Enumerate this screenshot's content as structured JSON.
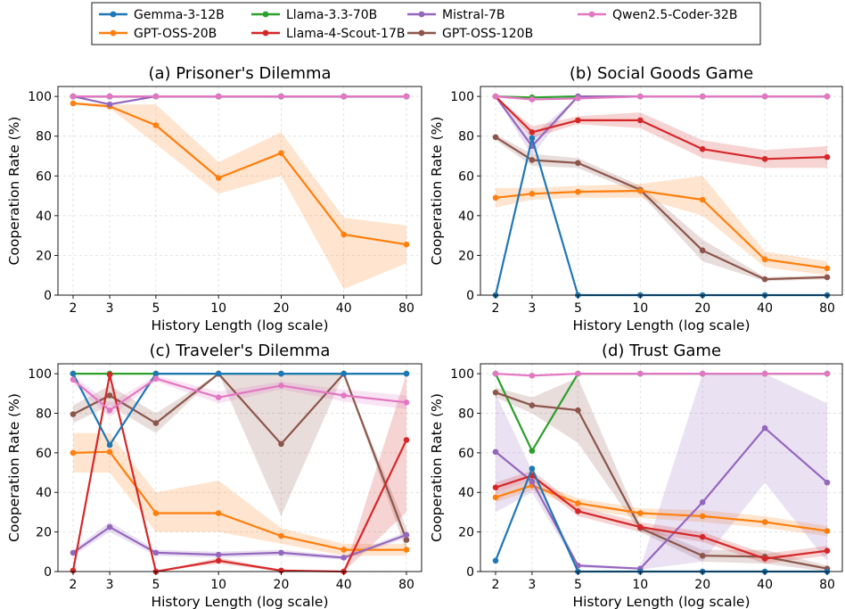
{
  "legend": [
    {
      "name": "Gemma-3-12B",
      "color": "#1f77b4"
    },
    {
      "name": "GPT-OSS-20B",
      "color": "#ff7f0e"
    },
    {
      "name": "Llama-3.3-70B",
      "color": "#2ca02c"
    },
    {
      "name": "Llama-4-Scout-17B",
      "color": "#d62728"
    },
    {
      "name": "Mistral-7B",
      "color": "#9467bd"
    },
    {
      "name": "GPT-OSS-120B",
      "color": "#8c564b"
    },
    {
      "name": "Qwen2.5-Coder-32B",
      "color": "#e377c2"
    }
  ],
  "chart_data": [
    {
      "type": "line",
      "title": "(a) Prisoner's Dilemma",
      "xlabel": "History Length (log scale)",
      "ylabel": "Cooperation Rate (%)",
      "x": [
        2,
        3,
        5,
        10,
        20,
        40,
        80
      ],
      "xscale": "log",
      "ylim": [
        0,
        105
      ],
      "yticks": [
        0,
        20,
        40,
        60,
        80,
        100
      ],
      "grid": true,
      "series": [
        {
          "name": "Gemma-3-12B",
          "values": [
            100,
            100,
            100,
            100,
            100,
            100,
            100
          ]
        },
        {
          "name": "GPT-OSS-20B",
          "values": [
            96.5,
            95,
            85.5,
            59,
            71.5,
            30.5,
            25.5
          ],
          "lower": [
            96,
            94,
            76,
            51,
            60,
            3,
            16
          ],
          "upper": [
            97,
            96,
            96,
            67,
            82,
            39,
            35
          ]
        },
        {
          "name": "Llama-3.3-70B",
          "values": [
            100,
            100,
            100,
            100,
            100,
            100,
            100
          ]
        },
        {
          "name": "Llama-4-Scout-17B",
          "values": [
            100,
            100,
            100,
            100,
            100,
            100,
            100
          ]
        },
        {
          "name": "Mistral-7B",
          "values": [
            100,
            96,
            100,
            100,
            100,
            100,
            100
          ]
        },
        {
          "name": "GPT-OSS-120B",
          "values": [
            100,
            100,
            100,
            100,
            100,
            100,
            100
          ]
        },
        {
          "name": "Qwen2.5-Coder-32B",
          "values": [
            100,
            100,
            100,
            100,
            100,
            100,
            100
          ]
        }
      ]
    },
    {
      "type": "line",
      "title": "(b) Social Goods Game",
      "xlabel": "History Length (log scale)",
      "ylabel": "Cooperation Rate (%)",
      "x": [
        2,
        3,
        5,
        10,
        20,
        40,
        80
      ],
      "xscale": "log",
      "ylim": [
        0,
        105
      ],
      "yticks": [
        0,
        20,
        40,
        60,
        80,
        100
      ],
      "grid": true,
      "series": [
        {
          "name": "Gemma-3-12B",
          "values": [
            0,
            79,
            0,
            0,
            0,
            0,
            0
          ]
        },
        {
          "name": "GPT-OSS-20B",
          "values": [
            49,
            51,
            52,
            52.5,
            48,
            18,
            13.5
          ],
          "lower": [
            44,
            48,
            49,
            49,
            40,
            14,
            10
          ],
          "upper": [
            54,
            54,
            55,
            56,
            60,
            22,
            17
          ]
        },
        {
          "name": "Llama-3.3-70B",
          "values": [
            100,
            99.5,
            100,
            100,
            100,
            100,
            100
          ]
        },
        {
          "name": "Llama-4-Scout-17B",
          "values": [
            100,
            82,
            88,
            88,
            73.5,
            68.5,
            69.5
          ],
          "lower": [
            100,
            79,
            86,
            84,
            69,
            64,
            64
          ],
          "upper": [
            100,
            85,
            90,
            92,
            78,
            73,
            75
          ]
        },
        {
          "name": "Mistral-7B",
          "values": [
            100,
            75,
            100,
            100,
            100,
            100,
            100
          ],
          "lower": [
            100,
            70,
            100,
            100,
            100,
            100,
            100
          ],
          "upper": [
            100,
            80,
            100,
            100,
            100,
            100,
            100
          ]
        },
        {
          "name": "GPT-OSS-120B",
          "values": [
            79.5,
            68,
            66.5,
            53,
            22.5,
            8,
            9
          ],
          "lower": [
            78,
            65,
            64,
            51,
            17,
            7,
            8
          ],
          "upper": [
            81,
            71,
            69,
            55,
            28,
            9,
            10
          ]
        },
        {
          "name": "Qwen2.5-Coder-32B",
          "values": [
            100,
            98.5,
            99,
            100,
            100,
            100,
            100
          ]
        }
      ]
    },
    {
      "type": "line",
      "title": "(c) Traveler's Dilemma",
      "xlabel": "History Length (log scale)",
      "ylabel": "Cooperation Rate (%)",
      "x": [
        2,
        3,
        5,
        10,
        20,
        40,
        80
      ],
      "xscale": "log",
      "ylim": [
        0,
        105
      ],
      "yticks": [
        0,
        20,
        40,
        60,
        80,
        100
      ],
      "grid": true,
      "series": [
        {
          "name": "Gemma-3-12B",
          "values": [
            100,
            64,
            100,
            100,
            100,
            100,
            100
          ]
        },
        {
          "name": "GPT-OSS-20B",
          "values": [
            60,
            60.5,
            29.5,
            29.5,
            18,
            11,
            11
          ],
          "lower": [
            50,
            50,
            20,
            20,
            14,
            8,
            8
          ],
          "upper": [
            70,
            70,
            40,
            46,
            22,
            14,
            14
          ]
        },
        {
          "name": "Llama-3.3-70B",
          "values": [
            100,
            100,
            100,
            100,
            100,
            100,
            100
          ]
        },
        {
          "name": "Llama-4-Scout-17B",
          "values": [
            0.5,
            99.5,
            0,
            5.5,
            0.5,
            0,
            66.5
          ],
          "lower": [
            0,
            99,
            0,
            4,
            0,
            0,
            30
          ],
          "upper": [
            1,
            100,
            0,
            7,
            1,
            0,
            100
          ]
        },
        {
          "name": "Mistral-7B",
          "values": [
            9.5,
            22.5,
            9.5,
            8.5,
            9.5,
            7,
            18.5
          ],
          "lower": [
            8,
            20,
            8,
            7,
            8,
            6,
            17
          ],
          "upper": [
            11,
            25,
            11,
            10,
            11,
            8,
            20
          ]
        },
        {
          "name": "GPT-OSS-120B",
          "values": [
            79.5,
            89,
            75,
            100,
            64.5,
            100,
            16
          ],
          "lower": [
            75,
            84,
            70,
            100,
            28,
            100,
            10
          ],
          "upper": [
            84,
            94,
            80,
            100,
            100,
            100,
            22
          ]
        },
        {
          "name": "Qwen2.5-Coder-32B",
          "values": [
            97,
            81.5,
            97.5,
            88,
            94,
            89,
            85.5
          ],
          "lower": [
            95,
            78,
            96,
            85,
            92,
            86,
            82
          ],
          "upper": [
            99,
            85,
            99,
            91,
            96,
            92,
            89
          ]
        }
      ]
    },
    {
      "type": "line",
      "title": "(d) Trust Game",
      "xlabel": "History Length (log scale)",
      "ylabel": "Cooperation Rate (%)",
      "x": [
        2,
        3,
        5,
        10,
        20,
        40,
        80
      ],
      "xscale": "log",
      "ylim": [
        0,
        105
      ],
      "yticks": [
        0,
        20,
        40,
        60,
        80,
        100
      ],
      "grid": true,
      "series": [
        {
          "name": "Gemma-3-12B",
          "values": [
            5.5,
            52,
            0,
            0,
            0,
            0,
            0
          ]
        },
        {
          "name": "GPT-OSS-20B",
          "values": [
            37.5,
            43.5,
            34.5,
            29.5,
            28,
            25,
            20.5
          ],
          "lower": [
            35,
            41,
            32,
            27,
            25,
            22,
            18
          ],
          "upper": [
            40,
            46,
            37,
            32,
            31,
            28,
            23
          ]
        },
        {
          "name": "Llama-3.3-70B",
          "values": [
            100,
            61,
            100,
            100,
            100,
            100,
            100
          ]
        },
        {
          "name": "Llama-4-Scout-17B",
          "values": [
            42.5,
            48.5,
            30.5,
            22.5,
            17.5,
            6.5,
            10.5
          ],
          "lower": [
            40,
            46,
            28,
            20,
            15,
            4,
            8
          ],
          "upper": [
            45,
            51,
            33,
            25,
            20,
            9,
            13
          ]
        },
        {
          "name": "Mistral-7B",
          "values": [
            60.5,
            45.5,
            3,
            1.5,
            35,
            72.5,
            45
          ],
          "lower": [
            30,
            40,
            2,
            1,
            5,
            45,
            5
          ],
          "upper": [
            90,
            51,
            4,
            2,
            100,
            100,
            85
          ]
        },
        {
          "name": "GPT-OSS-120B",
          "values": [
            90.5,
            84,
            81.5,
            22,
            8,
            7.5,
            1.5
          ],
          "lower": [
            88,
            80,
            65,
            20,
            5,
            4,
            0
          ],
          "upper": [
            93,
            88,
            98,
            24,
            11,
            11,
            3
          ]
        },
        {
          "name": "Qwen2.5-Coder-32B",
          "values": [
            100,
            99,
            100,
            100,
            100,
            100,
            100
          ]
        }
      ]
    }
  ]
}
